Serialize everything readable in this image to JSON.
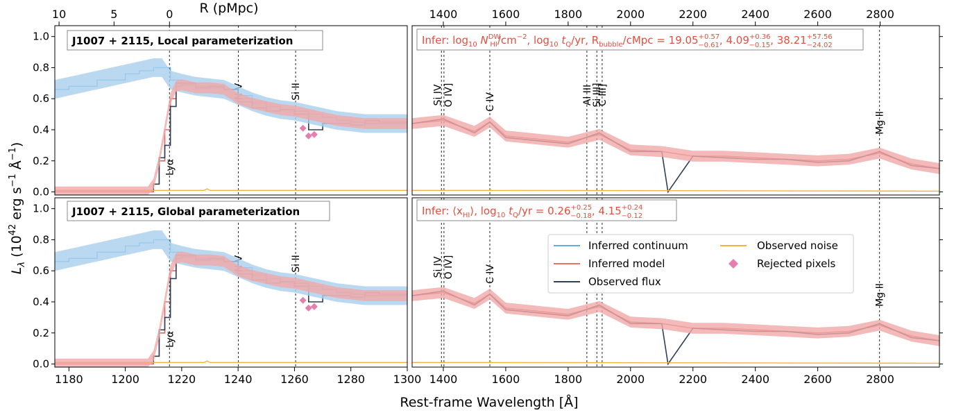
{
  "figure": {
    "top_axis_label": "R (pMpc)",
    "x_axis_label": "Rest-frame Wavelength [Å]",
    "y_axis_label_symbol": "L",
    "y_axis_label_sub": "λ",
    "y_axis_label_units_pre": "(10",
    "y_axis_label_units_exp": "42",
    "y_axis_label_units_mid": " erg s",
    "y_axis_label_units_exp2": "−1",
    "y_axis_label_units_mid2": " Å",
    "y_axis_label_units_exp3": "−1",
    "y_axis_label_units_post": ")",
    "top_ticks": [
      "10",
      "5",
      "0"
    ],
    "left_x_ticks": [
      "1180",
      "1200",
      "1220",
      "1240",
      "1260",
      "1280",
      "1300"
    ],
    "right_x_ticks": [
      "1400",
      "1600",
      "1800",
      "2000",
      "2200",
      "2400",
      "2600",
      "2800"
    ],
    "right_top_ticks": [
      "1400",
      "1600",
      "1800",
      "2000",
      "2200",
      "2400",
      "2600",
      "2800"
    ],
    "y_ticks": [
      "0.0",
      "0.2",
      "0.4",
      "0.6",
      "0.8",
      "1.0"
    ]
  },
  "panels": {
    "top_title": "J1007 + 2115,  Local parameterization",
    "bottom_title": "J1007 + 2115,  Global parameterization",
    "top_infer": {
      "pre": "Infer: log",
      "sub10": "10",
      "n": " N",
      "nsup": "DW",
      "nsub": "HI",
      "u1": "/cm",
      "u1sup": "−2",
      "c1": ", log",
      "sub10b": "10",
      "t": " t",
      "tsub": "Q",
      "u2": "/yr, R",
      "rsub": "bubble",
      "u3": "/cMpc = 19.05",
      "v1sup": "+0.57",
      "v1sub": "−0.61",
      "c2": ", 4.09",
      "v2sup": "+0.36",
      "v2sub": "−0.15",
      "c3": ", 38.21",
      "v3sup": "+57.56",
      "v3sub": "−24.02"
    },
    "bottom_infer": {
      "pre": "Infer: ⟨x",
      "xsub": "HI",
      "mid": "⟩, log",
      "sub10": "10",
      "t": " t",
      "tsub": "Q",
      "u": "/yr = 0.26",
      "v1sup": "+0.25",
      "v1sub": "−0.18",
      "c": ", 4.15",
      "v2sup": "+0.24",
      "v2sub": "−0.12"
    },
    "left_lines": [
      {
        "label": "Lyα",
        "x": 1215.67
      },
      {
        "label": "N V",
        "x": 1240.1
      },
      {
        "label": "Si II",
        "x": 1260.4
      }
    ],
    "right_lines": [
      {
        "label": "Si IV",
        "x": 1394
      },
      {
        "label": "O IV]",
        "x": 1402
      },
      {
        "label": "C IV",
        "x": 1549
      },
      {
        "label": "Al III",
        "x": 1860
      },
      {
        "label": "C III]",
        "x": 1909
      },
      {
        "label": "Si III]",
        "x": 1892
      },
      {
        "label": "Mg II",
        "x": 2798
      }
    ]
  },
  "legend": [
    {
      "label": "Inferred continuum",
      "color": "#5dade2",
      "kind": "line"
    },
    {
      "label": "Observed noise",
      "color": "#f5b041",
      "kind": "line"
    },
    {
      "label": "Inferred model",
      "color": "#ec7063",
      "kind": "line"
    },
    {
      "label": "Rejected pixels",
      "color": "#e67fb0",
      "kind": "diamond"
    },
    {
      "label": "Observed flux",
      "color": "#2e4053",
      "kind": "line"
    }
  ],
  "colors": {
    "continuum": "#5dade2",
    "continuum_band": "#a9cfee",
    "model": "#e06666",
    "model_band": "#f1a7a7",
    "flux": "#2e4053",
    "noise": "#f5b041",
    "rejected": "#e67fb0",
    "infer_text": "#e74c3c"
  },
  "chart_data": {
    "type": "line",
    "title": "",
    "xlabel": "Rest-frame Wavelength [Å]",
    "ylabel": "Lλ (10^42 erg s^-1 Å^-1)",
    "xlim_left": [
      1175,
      1300
    ],
    "xlim_right": [
      1300,
      2990
    ],
    "ylim": [
      -0.02,
      1.07
    ],
    "top_axis": {
      "label": "R (pMpc)",
      "ticks": [
        10,
        5,
        0
      ]
    },
    "series": [
      {
        "name": "Inferred continuum",
        "x": [
          1175,
          1180,
          1190,
          1200,
          1205,
          1210,
          1213,
          1216,
          1220,
          1225,
          1230,
          1235,
          1240,
          1245,
          1250,
          1255,
          1260,
          1265,
          1270,
          1275,
          1280,
          1285,
          1290,
          1295,
          1300
        ],
        "y": [
          0.66,
          0.68,
          0.72,
          0.76,
          0.78,
          0.8,
          0.8,
          0.72,
          0.7,
          0.68,
          0.67,
          0.66,
          0.62,
          0.58,
          0.55,
          0.53,
          0.52,
          0.5,
          0.48,
          0.46,
          0.45,
          0.44,
          0.44,
          0.44,
          0.44
        ]
      },
      {
        "name": "Inferred model",
        "x": [
          1175,
          1200,
          1208,
          1210,
          1212,
          1214,
          1216,
          1218,
          1220,
          1225,
          1230,
          1235,
          1240,
          1245,
          1250,
          1255,
          1260,
          1265,
          1270,
          1275,
          1280,
          1285,
          1290,
          1295,
          1300,
          1400,
          1500,
          1549,
          1600,
          1700,
          1800,
          1900,
          2000,
          2100,
          2200,
          2300,
          2400,
          2500,
          2600,
          2700,
          2798,
          2900,
          2990
        ],
        "y": [
          0.0,
          0.0,
          0.0,
          0.05,
          0.2,
          0.4,
          0.6,
          0.68,
          0.69,
          0.67,
          0.67,
          0.66,
          0.6,
          0.57,
          0.55,
          0.53,
          0.52,
          0.5,
          0.48,
          0.46,
          0.45,
          0.44,
          0.44,
          0.44,
          0.44,
          0.46,
          0.39,
          0.45,
          0.36,
          0.34,
          0.32,
          0.37,
          0.27,
          0.26,
          0.23,
          0.23,
          0.22,
          0.21,
          0.2,
          0.21,
          0.25,
          0.18,
          0.15
        ]
      },
      {
        "name": "Observed flux",
        "x": [
          1175,
          1200,
          1208,
          1210,
          1212,
          1214,
          1216,
          1218,
          1220,
          1225,
          1230,
          1235,
          1240,
          1245,
          1250,
          1255,
          1260,
          1265,
          1270,
          1275,
          1280,
          1285,
          1290,
          1295,
          1300,
          1400,
          1500,
          1549,
          1600,
          1700,
          1800,
          1900,
          2000,
          2100,
          2120,
          2200,
          2300,
          2400,
          2500,
          2600,
          2700,
          2798,
          2900,
          2990
        ],
        "y": [
          0.01,
          0.01,
          0.01,
          0.05,
          0.22,
          0.3,
          0.55,
          0.7,
          0.7,
          0.67,
          0.68,
          0.66,
          0.58,
          0.54,
          0.52,
          0.53,
          0.5,
          0.4,
          0.44,
          0.44,
          0.43,
          0.46,
          0.45,
          0.45,
          0.44,
          0.47,
          0.38,
          0.45,
          0.35,
          0.33,
          0.31,
          0.38,
          0.26,
          0.26,
          0.0,
          0.23,
          0.22,
          0.21,
          0.21,
          0.19,
          0.2,
          0.26,
          0.17,
          0.15
        ]
      },
      {
        "name": "Observed noise",
        "x": [
          1175,
          1228,
          1229,
          1230,
          1300,
          1550,
          1551,
          1552,
          2990
        ],
        "y": [
          0.01,
          0.01,
          0.02,
          0.01,
          0.01,
          0.01,
          0.02,
          0.01,
          0.005
        ]
      },
      {
        "name": "Rejected pixels",
        "x": [
          1263,
          1265,
          1267
        ],
        "y": [
          0.41,
          0.36,
          0.37
        ]
      }
    ]
  }
}
